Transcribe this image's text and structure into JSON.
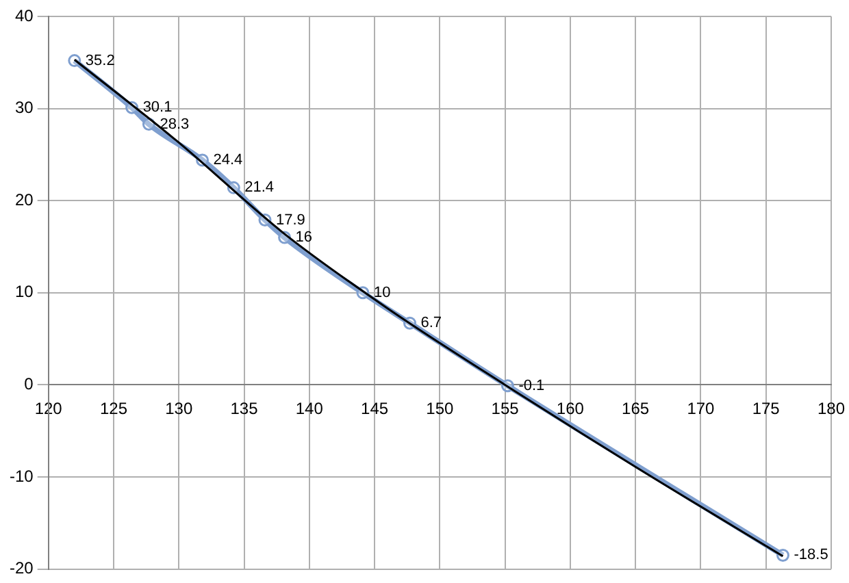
{
  "chart_data": {
    "type": "line",
    "xlim": [
      120,
      180
    ],
    "xticks": [
      120,
      125,
      130,
      135,
      140,
      145,
      150,
      155,
      160,
      165,
      170,
      175,
      180
    ],
    "ylim": [
      -20,
      40
    ],
    "yticks": [
      -20,
      -10,
      0,
      10,
      20,
      30,
      40
    ],
    "grid": true,
    "legend": false,
    "marker": "circle",
    "series": [
      {
        "color": "#7f9fcf",
        "x": [
          122,
          126.4,
          127.7,
          131.8,
          134.2,
          136.6,
          138.1,
          144.1,
          147.7,
          155.2,
          176.3
        ],
        "values": [
          35.2,
          30.1,
          28.3,
          24.4,
          21.4,
          17.9,
          16,
          10,
          6.7,
          -0.1,
          -18.5
        ],
        "value_labels": [
          "35.2",
          "30.1",
          "28.3",
          "24.4",
          "21.4",
          "17.9",
          "16",
          "10",
          "6.7",
          "-0.1",
          "-18.5"
        ]
      },
      {
        "type": "line",
        "color": "#000000",
        "marker": "none",
        "x": [
          122,
          130,
          138,
          146,
          155,
          165,
          176.3
        ],
        "values": [
          35.3,
          26.3,
          16.5,
          8.3,
          0,
          -8.9,
          -18.6
        ]
      }
    ]
  }
}
